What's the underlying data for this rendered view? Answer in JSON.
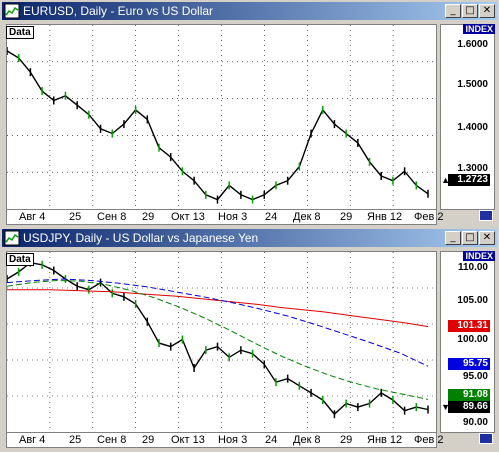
{
  "charts": [
    {
      "title": "EURUSD, Daily - Euro vs US Dollar",
      "data_label": "Data",
      "index_label": "INDEX",
      "y_ticks": [
        "1.6000",
        "1.5000",
        "1.4000",
        "1.3000"
      ],
      "x_ticks": [
        "Авг 4",
        "25",
        "Сен 8",
        "29",
        "Окт 13",
        "Ноя 3",
        "24",
        "Дек 8",
        "29",
        "Янв 12",
        "Фев 2"
      ],
      "price_labels": [
        {
          "value": "1.2723",
          "color": "#000000"
        }
      ]
    },
    {
      "title": "USDJPY, Daily - US Dollar vs Japanese Yen",
      "data_label": "Data",
      "index_label": "INDEX",
      "y_ticks": [
        "110.00",
        "105.00",
        "100.00",
        "95.00",
        "90.00"
      ],
      "x_ticks": [
        "Авг 4",
        "25",
        "Сен 8",
        "29",
        "Окт 13",
        "Ноя 3",
        "24",
        "Дек 8",
        "29",
        "Янв 12",
        "Фев 2"
      ],
      "price_labels": [
        {
          "value": "101.31",
          "color": "#e00000"
        },
        {
          "value": "95.75",
          "color": "#0000e0"
        },
        {
          "value": "91.08",
          "color": "#008000"
        },
        {
          "value": "89.66",
          "color": "#000000"
        }
      ]
    }
  ],
  "chart_data": [
    {
      "type": "line",
      "title": "EURUSD, Daily - Euro vs US Dollar",
      "ylim": [
        1.24,
        1.63
      ],
      "series": [
        {
          "name": "EURUSD",
          "color": "#000000",
          "values": [
            1.575,
            1.56,
            1.53,
            1.49,
            1.47,
            1.48,
            1.46,
            1.44,
            1.41,
            1.4,
            1.42,
            1.45,
            1.43,
            1.37,
            1.35,
            1.32,
            1.3,
            1.27,
            1.26,
            1.29,
            1.27,
            1.26,
            1.27,
            1.29,
            1.3,
            1.33,
            1.4,
            1.45,
            1.42,
            1.4,
            1.38,
            1.34,
            1.31,
            1.3,
            1.32,
            1.29,
            1.2723
          ]
        }
      ]
    },
    {
      "type": "line",
      "title": "USDJPY, Daily - US Dollar vs Japanese Yen",
      "ylim": [
        86.5,
        111.8
      ],
      "series": [
        {
          "name": "USDJPY",
          "color": "#000000",
          "values": [
            108.0,
            109.0,
            110.3,
            110.0,
            109.2,
            108.0,
            107.0,
            106.5,
            107.5,
            106.0,
            105.5,
            104.5,
            102.0,
            99.0,
            98.5,
            99.5,
            95.5,
            98.0,
            98.5,
            97.0,
            98.0,
            97.5,
            96.0,
            93.5,
            94.0,
            93.0,
            92.0,
            91.0,
            89.0,
            90.5,
            90.0,
            90.5,
            92.0,
            91.0,
            89.5,
            90.0,
            89.66
          ]
        },
        {
          "name": "MA red",
          "color": "#e00000",
          "values": [
            106.5,
            106.5,
            106.5,
            106.4,
            106.3,
            106.2,
            106.0,
            105.8,
            105.6,
            105.3,
            105.0,
            104.7,
            104.4,
            104.0,
            103.7,
            103.4,
            103.0,
            102.6,
            102.2,
            101.8,
            101.31
          ]
        },
        {
          "name": "MA blue",
          "color": "#0000e0",
          "values": [
            107.5,
            107.8,
            108.0,
            107.8,
            107.4,
            106.9,
            106.2,
            105.5,
            104.7,
            103.8,
            102.8,
            101.6,
            100.3,
            99.0,
            97.6,
            95.75
          ]
        },
        {
          "name": "MA green",
          "color": "#008000",
          "values": [
            107.0,
            107.5,
            107.8,
            107.7,
            107.2,
            106.4,
            105.3,
            104.0,
            102.5,
            100.8,
            99.0,
            97.3,
            95.8,
            94.5,
            93.4,
            92.5,
            91.8,
            91.08
          ]
        }
      ]
    }
  ]
}
